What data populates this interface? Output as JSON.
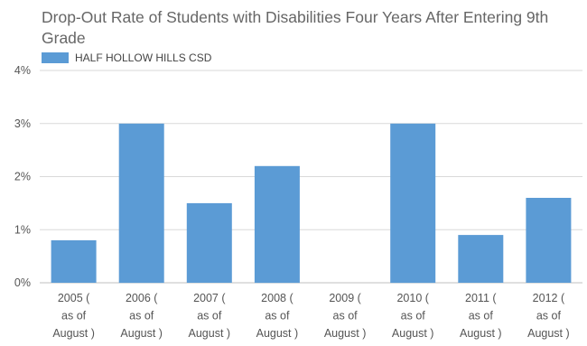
{
  "chart_data": {
    "type": "bar",
    "title": "Drop-Out Rate of Students with Disabilities Four Years After Entering 9th Grade",
    "xlabel": "",
    "ylabel": "",
    "ylim": [
      0,
      4
    ],
    "y_ticks": [
      "0%",
      "1%",
      "2%",
      "3%",
      "4%"
    ],
    "y_unit": "%",
    "grid": true,
    "legend_position": "top-left",
    "categories": [
      [
        "2005 (",
        "as of",
        "August )"
      ],
      [
        "2006 (",
        "as of",
        "August )"
      ],
      [
        "2007 (",
        "as of",
        "August )"
      ],
      [
        "2008 (",
        "as of",
        "August )"
      ],
      [
        "2009 (",
        "as of",
        "August )"
      ],
      [
        "2010 (",
        "as of",
        "August )"
      ],
      [
        "2011 (",
        "as of",
        "August )"
      ],
      [
        "2012 (",
        "as of",
        "August )"
      ]
    ],
    "series": [
      {
        "name": "HALF HOLLOW HILLS CSD",
        "color": "#5b9bd5",
        "values": [
          0.8,
          3.0,
          1.5,
          2.2,
          0.0,
          3.0,
          0.9,
          1.6
        ]
      }
    ]
  }
}
